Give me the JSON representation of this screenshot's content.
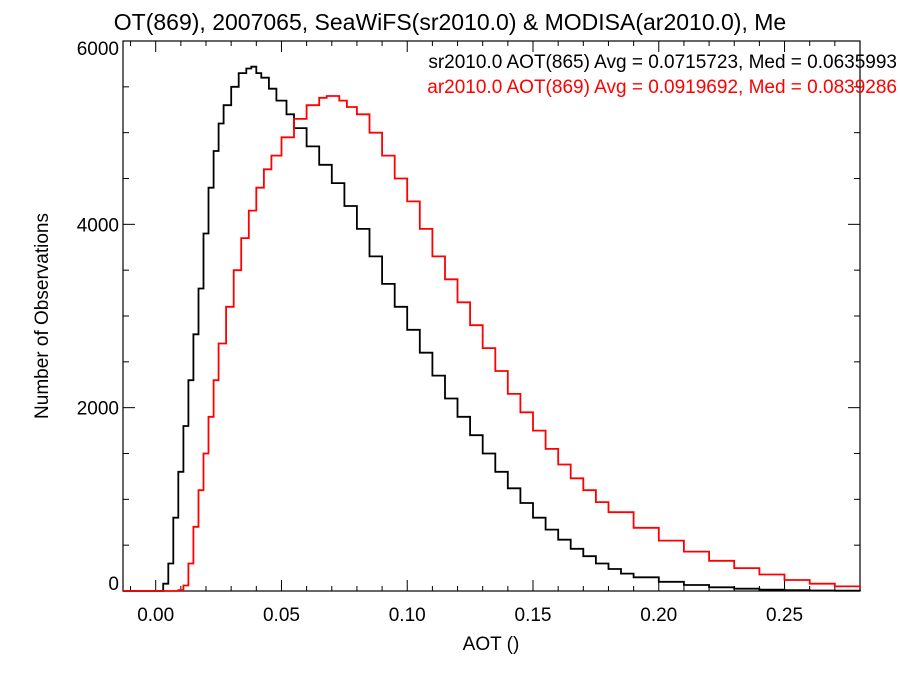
{
  "chart_data": {
    "type": "line",
    "title": "OT(869), 2007065, SeaWiFS(sr2010.0) & MODISA(ar2010.0), Me",
    "xlabel": "AOT ()",
    "ylabel": "Number of Observations",
    "xlim": [
      -0.013,
      0.28
    ],
    "ylim": [
      0,
      6000
    ],
    "xticks": [
      0.0,
      0.05,
      0.1,
      0.15,
      0.2,
      0.25
    ],
    "xtick_labels": [
      "0.00",
      "0.05",
      "0.10",
      "0.15",
      "0.20",
      "0.25"
    ],
    "yticks": [
      0,
      2000,
      4000,
      6000
    ],
    "ytick_labels": [
      "0",
      "2000",
      "4000",
      "6000"
    ],
    "grid": false,
    "legend_position": "top-right",
    "series": [
      {
        "name": "sr2010.0 AOT(865) Avg = 0.0715723, Med = 0.0635993",
        "color": "#000000",
        "x": [
          -0.013,
          0.0,
          0.003,
          0.005,
          0.007,
          0.009,
          0.011,
          0.013,
          0.015,
          0.017,
          0.019,
          0.021,
          0.023,
          0.025,
          0.027,
          0.03,
          0.033,
          0.036,
          0.038,
          0.04,
          0.042,
          0.045,
          0.048,
          0.052,
          0.055,
          0.06,
          0.065,
          0.07,
          0.075,
          0.08,
          0.085,
          0.09,
          0.095,
          0.1,
          0.105,
          0.11,
          0.115,
          0.12,
          0.125,
          0.13,
          0.135,
          0.14,
          0.145,
          0.15,
          0.155,
          0.16,
          0.165,
          0.17,
          0.175,
          0.18,
          0.185,
          0.19,
          0.2,
          0.21,
          0.22,
          0.23,
          0.24,
          0.25,
          0.26,
          0.27,
          0.28
        ],
        "y": [
          0,
          0,
          80,
          300,
          800,
          1300,
          1800,
          2300,
          2800,
          3300,
          3900,
          4400,
          4800,
          5100,
          5300,
          5500,
          5650,
          5700,
          5720,
          5650,
          5600,
          5480,
          5350,
          5200,
          5050,
          4850,
          4650,
          4450,
          4200,
          3950,
          3650,
          3350,
          3100,
          2850,
          2600,
          2350,
          2100,
          1900,
          1700,
          1500,
          1300,
          1120,
          960,
          800,
          670,
          560,
          460,
          380,
          300,
          240,
          190,
          150,
          100,
          65,
          40,
          25,
          15,
          9,
          5,
          3,
          1
        ]
      },
      {
        "name": "ar2010.0 AOT(869) Avg = 0.0919692, Med = 0.0839286",
        "color": "#ff0000",
        "x": [
          -0.013,
          0.005,
          0.009,
          0.011,
          0.013,
          0.015,
          0.017,
          0.019,
          0.021,
          0.023,
          0.025,
          0.028,
          0.031,
          0.034,
          0.037,
          0.04,
          0.043,
          0.046,
          0.05,
          0.055,
          0.06,
          0.065,
          0.068,
          0.07,
          0.073,
          0.076,
          0.08,
          0.085,
          0.09,
          0.095,
          0.1,
          0.105,
          0.11,
          0.115,
          0.12,
          0.125,
          0.13,
          0.135,
          0.14,
          0.145,
          0.15,
          0.155,
          0.16,
          0.165,
          0.17,
          0.175,
          0.18,
          0.19,
          0.2,
          0.21,
          0.22,
          0.23,
          0.24,
          0.25,
          0.26,
          0.27,
          0.28
        ],
        "y": [
          0,
          0,
          10,
          60,
          300,
          700,
          1100,
          1500,
          1900,
          2300,
          2700,
          3100,
          3500,
          3850,
          4150,
          4400,
          4600,
          4750,
          4950,
          5150,
          5300,
          5380,
          5400,
          5400,
          5350,
          5280,
          5200,
          5000,
          4750,
          4500,
          4250,
          3950,
          3650,
          3400,
          3150,
          2900,
          2650,
          2400,
          2150,
          1950,
          1750,
          1550,
          1380,
          1230,
          1100,
          970,
          860,
          690,
          550,
          430,
          330,
          250,
          180,
          120,
          80,
          50,
          30
        ]
      }
    ]
  }
}
